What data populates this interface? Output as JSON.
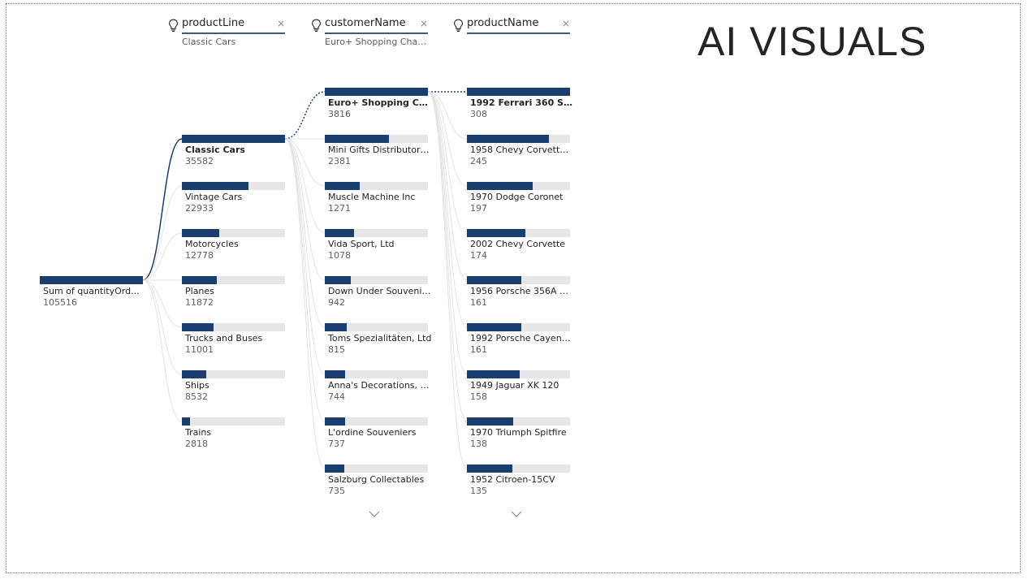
{
  "page_title": "AI VISUALS",
  "levels": [
    {
      "field": "productLine",
      "selected": "Classic Cars"
    },
    {
      "field": "customerName",
      "selected": "Euro+ Shopping Chan..."
    },
    {
      "field": "productName",
      "selected": ""
    }
  ],
  "root": {
    "label": "Sum of quantityOrd...",
    "value": "105516",
    "fill": 1.0
  },
  "columns": [
    [
      {
        "label": "Classic Cars",
        "value": "35582",
        "fill": 1.0,
        "selected": true
      },
      {
        "label": "Vintage Cars",
        "value": "22933",
        "fill": 0.645
      },
      {
        "label": "Motorcycles",
        "value": "12778",
        "fill": 0.36
      },
      {
        "label": "Planes",
        "value": "11872",
        "fill": 0.335
      },
      {
        "label": "Trucks and Buses",
        "value": "11001",
        "fill": 0.31
      },
      {
        "label": "Ships",
        "value": "8532",
        "fill": 0.24
      },
      {
        "label": "Trains",
        "value": "2818",
        "fill": 0.08
      }
    ],
    [
      {
        "label": "Euro+ Shopping Cha...",
        "value": "3816",
        "fill": 1.0,
        "selected": true
      },
      {
        "label": "Mini Gifts Distributors...",
        "value": "2381",
        "fill": 0.625
      },
      {
        "label": "Muscle Machine Inc",
        "value": "1271",
        "fill": 0.335
      },
      {
        "label": "Vida Sport, Ltd",
        "value": "1078",
        "fill": 0.285
      },
      {
        "label": "Down Under Souvenie...",
        "value": "942",
        "fill": 0.25
      },
      {
        "label": "Toms Spezialitäten, Ltd",
        "value": "815",
        "fill": 0.215
      },
      {
        "label": "Anna's Decorations, Ltd",
        "value": "744",
        "fill": 0.195
      },
      {
        "label": "L'ordine Souveniers",
        "value": "737",
        "fill": 0.195
      },
      {
        "label": "Salzburg Collectables",
        "value": "735",
        "fill": 0.19
      }
    ],
    [
      {
        "label": "1992 Ferrari 360 Spi...",
        "value": "308",
        "fill": 1.0,
        "selected": true
      },
      {
        "label": "1958 Chevy Corvette L...",
        "value": "245",
        "fill": 0.795
      },
      {
        "label": "1970 Dodge Coronet",
        "value": "197",
        "fill": 0.64
      },
      {
        "label": "2002 Chevy Corvette",
        "value": "174",
        "fill": 0.565
      },
      {
        "label": "1956 Porsche 356A Co...",
        "value": "161",
        "fill": 0.525
      },
      {
        "label": "1992 Porsche Cayenn...",
        "value": "161",
        "fill": 0.525
      },
      {
        "label": "1949 Jaguar XK 120",
        "value": "158",
        "fill": 0.515
      },
      {
        "label": "1970 Triumph Spitfire",
        "value": "138",
        "fill": 0.45
      },
      {
        "label": "1952 Citroen-15CV",
        "value": "135",
        "fill": 0.44
      }
    ]
  ],
  "colors": {
    "bar": "#1a3e6e",
    "track": "#e6e6e6",
    "link": "#1a3e6e",
    "link_faint": "#e3e3e3"
  },
  "icons": {
    "bulb": "lightbulb-icon",
    "close": "close-icon",
    "more": "chevron-down-icon"
  }
}
